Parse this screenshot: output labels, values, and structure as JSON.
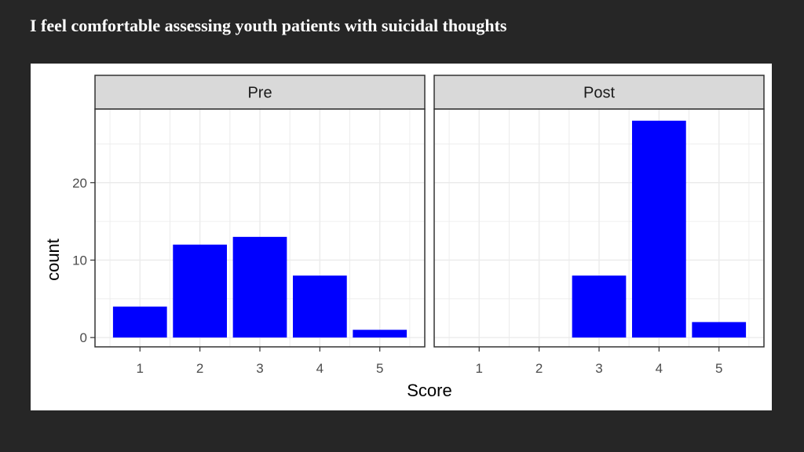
{
  "slide": {
    "title": "I feel comfortable assessing youth patients with suicidal thoughts"
  },
  "colors": {
    "bar": "#0000ff",
    "strip_bg": "#d9d9d9",
    "panel_border": "#333333",
    "grid": "#ebebeb",
    "background": "#262626"
  },
  "chart_data": {
    "type": "bar",
    "facets": [
      "Pre",
      "Post"
    ],
    "categories": [
      1,
      2,
      3,
      4,
      5
    ],
    "series": [
      {
        "facet": "Pre",
        "values": [
          4,
          12,
          13,
          8,
          1
        ]
      },
      {
        "facet": "Post",
        "values": [
          0,
          0,
          8,
          28,
          2
        ]
      }
    ],
    "xlabel": "Score",
    "ylabel": "count",
    "yticks": [
      0,
      10,
      20
    ],
    "ylim": [
      -1.2,
      29.5
    ],
    "grid": true,
    "theme": "bw"
  }
}
